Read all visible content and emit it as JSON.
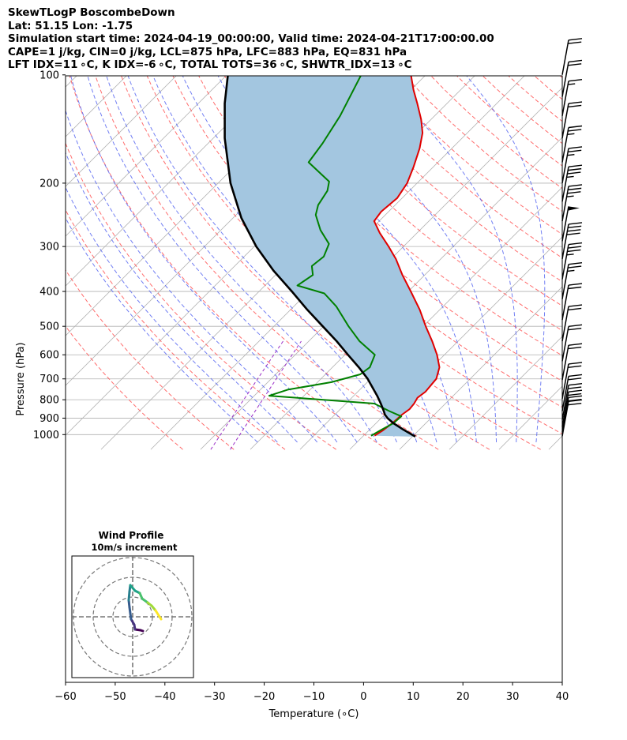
{
  "header": {
    "line1": "SkewTLogP BoscombeDown",
    "line2": "Lat: 51.15   Lon: -1.75",
    "line3": "Simulation start time: 2024-04-19_00:00:00, Valid time: 2024-04-21T17:00:00.00",
    "line4": "CAPE=1 j/kg, CIN=0 j/kg, LCL=875 hPa, LFC=883 hPa, EQ=831 hPa",
    "line5": "LFT IDX=11 ∘C, K IDX=-6 ∘C, TOTAL TOTS=36 ∘C, SHWTR_IDX=13 ∘C"
  },
  "chart_data": {
    "type": "line",
    "subtype": "skew-T log-p diagram",
    "xlabel": "Temperature (∘C)",
    "ylabel": "Pressure (hPa)",
    "xlim": [
      -60,
      40
    ],
    "ylim": [
      1050,
      100
    ],
    "y_scale": "log",
    "x_ticks": [
      "−60",
      "−50",
      "−40",
      "−30",
      "−20",
      "−10",
      "0",
      "10",
      "20",
      "30",
      "40"
    ],
    "x_tick_values": [
      -60,
      -50,
      -40,
      -30,
      -20,
      -10,
      0,
      10,
      20,
      30,
      40
    ],
    "y_ticks": [
      "100",
      "200",
      "300",
      "400",
      "500",
      "600",
      "700",
      "800",
      "900",
      "1000"
    ],
    "y_tick_values": [
      100,
      200,
      300,
      400,
      500,
      600,
      700,
      800,
      900,
      1000
    ],
    "grid": true,
    "background_lines": {
      "isotherms_color": "#b0b0b0",
      "dry_adiabats_color": "#ff5555",
      "moist_adiabats_color": "#4f5ff0",
      "mixing_ratio_color": "#9b30c8"
    },
    "series": [
      {
        "color": "#e00000",
        "points": [
          [
            1007,
            2.2
          ],
          [
            975,
            2.8
          ],
          [
            925,
            3.3
          ],
          [
            880,
            3.5
          ],
          [
            850,
            3.9
          ],
          [
            820,
            3.7
          ],
          [
            790,
            3.2
          ],
          [
            760,
            3.6
          ],
          [
            700,
            3.2
          ],
          [
            650,
            1.5
          ],
          [
            600,
            -1.5
          ],
          [
            550,
            -5.2
          ],
          [
            500,
            -9.5
          ],
          [
            450,
            -14
          ],
          [
            400,
            -19.5
          ],
          [
            360,
            -24.5
          ],
          [
            325,
            -29
          ],
          [
            300,
            -33
          ],
          [
            275,
            -37.5
          ],
          [
            255,
            -41
          ],
          [
            240,
            -41.5
          ],
          [
            220,
            -41
          ],
          [
            200,
            -42
          ],
          [
            180,
            -44
          ],
          [
            160,
            -46.5
          ],
          [
            145,
            -49
          ],
          [
            133,
            -52
          ],
          [
            120,
            -56
          ],
          [
            110,
            -59.5
          ],
          [
            100,
            -63
          ]
        ]
      },
      {
        "color": "#008000",
        "points": [
          [
            1007,
            1.5
          ],
          [
            970,
            2.4
          ],
          [
            930,
            3.5
          ],
          [
            890,
            3.7
          ],
          [
            860,
            0.2
          ],
          [
            820,
            -4.3
          ],
          [
            780,
            -27
          ],
          [
            750,
            -24.5
          ],
          [
            715,
            -17.2
          ],
          [
            680,
            -13
          ],
          [
            650,
            -12.5
          ],
          [
            600,
            -14
          ],
          [
            550,
            -19.8
          ],
          [
            500,
            -25
          ],
          [
            440,
            -31.5
          ],
          [
            405,
            -36.5
          ],
          [
            385,
            -43.5
          ],
          [
            360,
            -42.5
          ],
          [
            340,
            -44.5
          ],
          [
            320,
            -44
          ],
          [
            295,
            -45.5
          ],
          [
            270,
            -50
          ],
          [
            245,
            -54
          ],
          [
            230,
            -55.5
          ],
          [
            210,
            -56.5
          ],
          [
            198,
            -58
          ],
          [
            175,
            -66
          ],
          [
            155,
            -67
          ],
          [
            130,
            -69
          ],
          [
            100,
            -73
          ]
        ]
      },
      {
        "color": "#000000",
        "points": [
          [
            1013,
            10.6
          ],
          [
            970,
            6.9
          ],
          [
            930,
            3.5
          ],
          [
            900,
            1.3
          ],
          [
            880,
            0.05
          ],
          [
            860,
            -0.9
          ],
          [
            820,
            -3
          ],
          [
            780,
            -5.3
          ],
          [
            700,
            -10.6
          ],
          [
            650,
            -14.7
          ],
          [
            600,
            -19.4
          ],
          [
            550,
            -24.4
          ],
          [
            500,
            -30.2
          ],
          [
            450,
            -36.6
          ],
          [
            400,
            -43.4
          ],
          [
            350,
            -51.3
          ],
          [
            300,
            -59.6
          ],
          [
            250,
            -68.3
          ],
          [
            200,
            -77.5
          ],
          [
            150,
            -87.7
          ],
          [
            120,
            -94.7
          ],
          [
            100,
            -99.8
          ]
        ]
      }
    ],
    "filled_region_color": "#a3c6e0",
    "wind_barbs": [
      {
        "p": 100,
        "speed_kt": 20
      },
      {
        "p": 115,
        "speed_kt": 20
      },
      {
        "p": 130,
        "speed_kt": 15
      },
      {
        "p": 150,
        "speed_kt": 20
      },
      {
        "p": 175,
        "speed_kt": 25
      },
      {
        "p": 200,
        "speed_kt": 25
      },
      {
        "p": 225,
        "speed_kt": 35
      },
      {
        "p": 255,
        "speed_kt": 35
      },
      {
        "p": 290,
        "speed_kt": 50
      },
      {
        "p": 325,
        "speed_kt": 40
      },
      {
        "p": 370,
        "speed_kt": 35
      },
      {
        "p": 420,
        "speed_kt": 25
      },
      {
        "p": 480,
        "speed_kt": 20
      },
      {
        "p": 550,
        "speed_kt": 20
      },
      {
        "p": 625,
        "speed_kt": 20
      },
      {
        "p": 705,
        "speed_kt": 20
      },
      {
        "p": 795,
        "speed_kt": 20
      },
      {
        "p": 860,
        "speed_kt": 20
      },
      {
        "p": 910,
        "speed_kt": 20
      },
      {
        "p": 950,
        "speed_kt": 20
      },
      {
        "p": 985,
        "speed_kt": 20
      },
      {
        "p": 1010,
        "speed_kt": 20
      }
    ],
    "inset": {
      "title": "Wind Profile",
      "subtitle": "10m/s increment",
      "rings": [
        1,
        2,
        3
      ],
      "hodograph": [
        [
          1.3,
          1.8
        ],
        [
          1.0,
          1.7
        ],
        [
          0.3,
          1.6
        ],
        [
          0.2,
          1.0
        ],
        [
          -0.2,
          0.3
        ],
        [
          -0.4,
          -1.2
        ],
        [
          -0.5,
          -2.1
        ],
        [
          -0.4,
          -3.2
        ],
        [
          -0.3,
          -4.0
        ],
        [
          0.3,
          -3.3
        ],
        [
          0.9,
          -3.0
        ],
        [
          1.2,
          -2.3
        ],
        [
          1.9,
          -1.8
        ],
        [
          2.4,
          -1.4
        ],
        [
          2.9,
          -0.8
        ],
        [
          3.6,
          0.3
        ]
      ],
      "colormap": "viridis"
    }
  }
}
